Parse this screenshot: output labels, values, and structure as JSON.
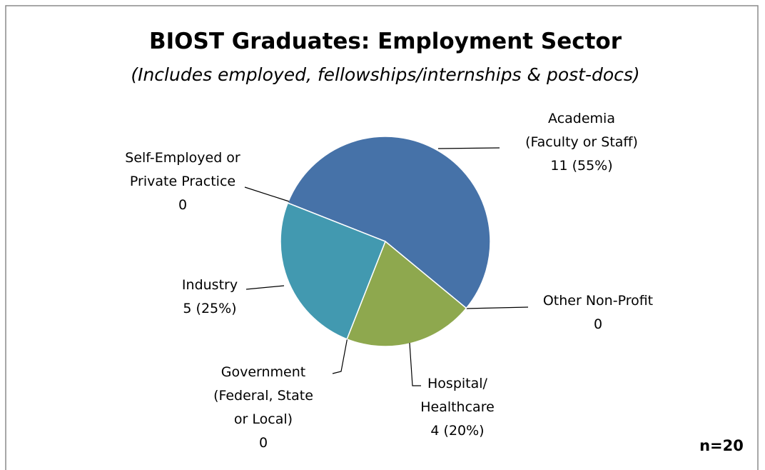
{
  "chart_data": {
    "type": "pie",
    "title": "BIOST Graduates: Employment Sector",
    "subtitle": "(Includes employed, fellowships/internships & post-docs)",
    "categories": [
      "Academia\n(Faculty or Staff)",
      "Other Non-Profit",
      "Hospital/\nHealthcare",
      "Government\n(Federal, State\nor Local)",
      "Industry",
      "Self-Employed or\nPrivate Practice"
    ],
    "values": [
      11,
      0,
      4,
      0,
      5,
      0
    ],
    "value_labels": [
      "11 (55%)",
      "0",
      "4 (20%)",
      "0",
      "5 (25%)",
      "0"
    ],
    "colors": [
      "#4672a8",
      "#7d5fa0",
      "#8ea84e",
      "#d9823b",
      "#4299b0",
      "#93a9cf"
    ],
    "annotation": "n=20"
  }
}
